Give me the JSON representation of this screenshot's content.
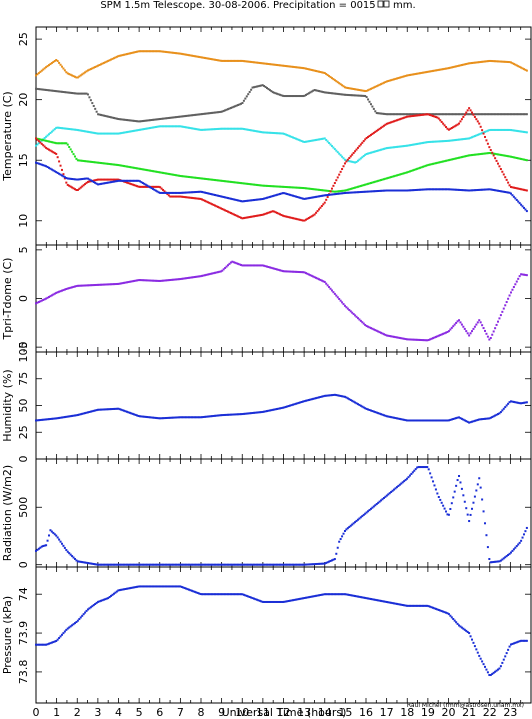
{
  "title": "SPM 1.5m Telescope. 30-08-2006. Precipitation = 0015",
  "title_unit": "mm.",
  "credit": "Raul Michel (rmm@astrosen.unam.mx)",
  "chart_data": [
    {
      "type": "scatter",
      "ylabel": "Temperature (C)",
      "ylim": [
        8,
        26
      ],
      "yticks": [
        10,
        15,
        20,
        25
      ],
      "xlim": [
        0,
        24
      ],
      "series": [
        {
          "color": "#e8901c",
          "x": [
            0,
            0.5,
            1,
            1.5,
            2,
            2.5,
            3,
            4,
            5,
            6,
            7,
            8,
            9,
            10,
            11,
            12,
            13,
            14,
            15,
            16,
            17,
            18,
            19,
            20,
            21,
            22,
            23,
            23.8
          ],
          "y": [
            22.0,
            22.7,
            23.3,
            22.2,
            21.8,
            22.4,
            22.8,
            23.6,
            24.0,
            24.0,
            23.8,
            23.5,
            23.2,
            23.2,
            23.0,
            22.8,
            22.6,
            22.2,
            21.0,
            20.7,
            21.5,
            22.0,
            22.3,
            22.6,
            23.0,
            23.2,
            23.1,
            22.4
          ]
        },
        {
          "color": "#606060",
          "x": [
            0,
            1,
            2,
            2.5,
            3,
            4,
            5,
            6,
            7,
            8,
            9,
            10,
            10.5,
            11,
            11.5,
            12,
            13,
            13.5,
            14,
            15,
            16,
            16.5,
            17,
            18,
            19,
            20,
            21,
            22,
            23,
            23.8
          ],
          "y": [
            20.9,
            20.7,
            20.5,
            20.5,
            18.8,
            18.4,
            18.2,
            18.4,
            18.6,
            18.8,
            19.0,
            19.7,
            21.0,
            21.2,
            20.6,
            20.3,
            20.3,
            20.8,
            20.6,
            20.4,
            20.3,
            18.9,
            18.8,
            18.8,
            18.8,
            18.8,
            18.8,
            18.8,
            18.8,
            18.8
          ]
        },
        {
          "color": "#36e2e8",
          "x": [
            0,
            1,
            2,
            3,
            4,
            5,
            6,
            7,
            8,
            9,
            10,
            11,
            12,
            13,
            14,
            15,
            15.5,
            16,
            17,
            18,
            19,
            20,
            21,
            22,
            23,
            23.8
          ],
          "y": [
            16.2,
            17.7,
            17.5,
            17.2,
            17.2,
            17.5,
            17.8,
            17.8,
            17.5,
            17.6,
            17.6,
            17.3,
            17.2,
            16.5,
            16.8,
            15.0,
            14.8,
            15.5,
            16.0,
            16.2,
            16.5,
            16.6,
            16.8,
            17.5,
            17.5,
            17.3
          ]
        },
        {
          "color": "#22e022",
          "x": [
            0,
            1,
            1.5,
            2,
            3,
            4,
            5,
            6,
            7,
            8,
            9,
            10,
            11,
            12,
            13,
            14,
            14.5,
            15,
            16,
            17,
            18,
            19,
            20,
            21,
            22,
            23,
            23.8
          ],
          "y": [
            16.8,
            16.4,
            16.4,
            15.0,
            14.8,
            14.6,
            14.3,
            14.0,
            13.7,
            13.5,
            13.3,
            13.1,
            12.9,
            12.8,
            12.7,
            12.5,
            12.4,
            12.5,
            13.0,
            13.5,
            14.0,
            14.6,
            15.0,
            15.4,
            15.6,
            15.3,
            15.0
          ]
        },
        {
          "color": "#e01c1c",
          "x": [
            0,
            0.5,
            1,
            1.5,
            2,
            2.5,
            3,
            4,
            5,
            6,
            6.5,
            7,
            8,
            9,
            9.5,
            10,
            11,
            11.5,
            12,
            13,
            13.5,
            14,
            15,
            16,
            17,
            18,
            19,
            19.5,
            20,
            20.5,
            21,
            21.5,
            22,
            23,
            23.8
          ],
          "y": [
            16.8,
            16.0,
            15.5,
            13.0,
            12.5,
            13.2,
            13.4,
            13.4,
            12.8,
            12.8,
            12.0,
            12.0,
            11.8,
            11.0,
            10.6,
            10.2,
            10.5,
            10.8,
            10.4,
            10.0,
            10.5,
            11.5,
            14.8,
            16.8,
            18.0,
            18.6,
            18.8,
            18.5,
            17.5,
            18.0,
            19.3,
            18.0,
            16.0,
            12.8,
            12.5
          ]
        },
        {
          "color": "#1a2ed6",
          "x": [
            0,
            0.5,
            1,
            1.5,
            2,
            2.5,
            3,
            4,
            5,
            6,
            7,
            8,
            9,
            10,
            11,
            12,
            13,
            14,
            15,
            16,
            17,
            18,
            19,
            20,
            21,
            22,
            23,
            23.8
          ],
          "y": [
            14.8,
            14.5,
            14.0,
            13.5,
            13.4,
            13.5,
            13.0,
            13.3,
            13.3,
            12.3,
            12.3,
            12.4,
            12.0,
            11.6,
            11.8,
            12.3,
            11.8,
            12.1,
            12.3,
            12.4,
            12.5,
            12.5,
            12.6,
            12.6,
            12.5,
            12.6,
            12.3,
            10.8
          ]
        }
      ]
    },
    {
      "type": "scatter",
      "ylabel": "Tpri-Tdome (C)",
      "ylim": [
        -5.5,
        5.5
      ],
      "yticks": [
        -5,
        0,
        5
      ],
      "xlim": [
        0,
        24
      ],
      "series": [
        {
          "color": "#8a2be2",
          "x": [
            0,
            0.5,
            1,
            1.5,
            2,
            3,
            4,
            5,
            6,
            7,
            8,
            9,
            9.5,
            10,
            11,
            12,
            13,
            14,
            15,
            16,
            17,
            18,
            19,
            20,
            20.5,
            21,
            21.5,
            22,
            23,
            23.5,
            23.8
          ],
          "y": [
            -0.5,
            0.0,
            0.6,
            1.0,
            1.3,
            1.4,
            1.5,
            1.9,
            1.8,
            2.0,
            2.3,
            2.8,
            3.8,
            3.4,
            3.4,
            2.8,
            2.7,
            1.7,
            -0.8,
            -2.8,
            -3.8,
            -4.2,
            -4.3,
            -3.4,
            -2.2,
            -3.8,
            -2.2,
            -4.3,
            0.5,
            2.5,
            2.4
          ]
        }
      ]
    },
    {
      "type": "line",
      "ylabel": "Humidity (%)",
      "ylim": [
        0,
        100
      ],
      "yticks": [
        0,
        25,
        50,
        75,
        100
      ],
      "xlim": [
        0,
        24
      ],
      "series": [
        {
          "color": "#1a2ed6",
          "x": [
            0,
            1,
            2,
            3,
            4,
            5,
            6,
            7,
            8,
            9,
            10,
            11,
            12,
            13,
            14,
            14.5,
            15,
            16,
            17,
            18,
            19,
            20,
            20.5,
            21,
            21.5,
            22,
            22.5,
            23,
            23.5,
            23.8
          ],
          "y": [
            36,
            38,
            41,
            46,
            47,
            40,
            38,
            39,
            39,
            41,
            42,
            44,
            48,
            54,
            59,
            60,
            58,
            47,
            40,
            36,
            36,
            36,
            39,
            34,
            37,
            38,
            43,
            54,
            52,
            53
          ]
        }
      ]
    },
    {
      "type": "scatter",
      "ylabel": "Radiation (W/m2)",
      "ylim": [
        -20,
        920
      ],
      "yticks": [
        0,
        500
      ],
      "xlim": [
        0,
        24
      ],
      "series": [
        {
          "color": "#1a2ed6",
          "x": [
            0,
            0.3,
            0.5,
            0.7,
            1,
            1.5,
            2,
            3,
            4,
            5,
            6,
            7,
            8,
            9,
            10,
            11,
            12,
            13,
            14,
            14.5,
            14.7,
            15,
            16,
            17,
            18,
            18.5,
            19,
            19.5,
            20,
            20.5,
            21,
            21.5,
            22,
            22.5,
            23,
            23.5,
            23.8
          ],
          "y": [
            120,
            160,
            170,
            300,
            250,
            120,
            30,
            0,
            0,
            0,
            0,
            0,
            0,
            0,
            0,
            0,
            0,
            0,
            10,
            50,
            200,
            300,
            450,
            600,
            750,
            850,
            850,
            600,
            420,
            780,
            380,
            760,
            20,
            30,
            100,
            200,
            320
          ]
        }
      ]
    },
    {
      "type": "scatter",
      "ylabel": "Pressure (kPa)",
      "ylim": [
        73.72,
        74.07
      ],
      "yticks": [
        73.8,
        73.9,
        74
      ],
      "xlim": [
        0,
        24
      ],
      "xlabel": "Universal Time (hours)",
      "xticks": [
        0,
        1,
        2,
        3,
        4,
        5,
        6,
        7,
        8,
        9,
        10,
        11,
        12,
        13,
        14,
        15,
        16,
        17,
        18,
        19,
        20,
        21,
        22,
        23
      ],
      "series": [
        {
          "color": "#1a2ed6",
          "x": [
            0,
            0.5,
            1,
            1.5,
            2,
            2.5,
            3,
            3.5,
            4,
            5,
            6,
            7,
            8,
            9,
            10,
            11,
            12,
            13,
            14,
            15,
            16,
            17,
            18,
            19,
            20,
            20.5,
            21,
            21.5,
            22,
            22.5,
            23,
            23.5,
            23.8
          ],
          "y": [
            73.87,
            73.87,
            73.88,
            73.91,
            73.93,
            73.96,
            73.98,
            73.99,
            74.01,
            74.02,
            74.02,
            74.02,
            74.0,
            74.0,
            74.0,
            73.98,
            73.98,
            73.99,
            74.0,
            74.0,
            73.99,
            73.98,
            73.97,
            73.97,
            73.95,
            73.92,
            73.9,
            73.84,
            73.79,
            73.81,
            73.87,
            73.88,
            73.88
          ]
        }
      ]
    }
  ]
}
